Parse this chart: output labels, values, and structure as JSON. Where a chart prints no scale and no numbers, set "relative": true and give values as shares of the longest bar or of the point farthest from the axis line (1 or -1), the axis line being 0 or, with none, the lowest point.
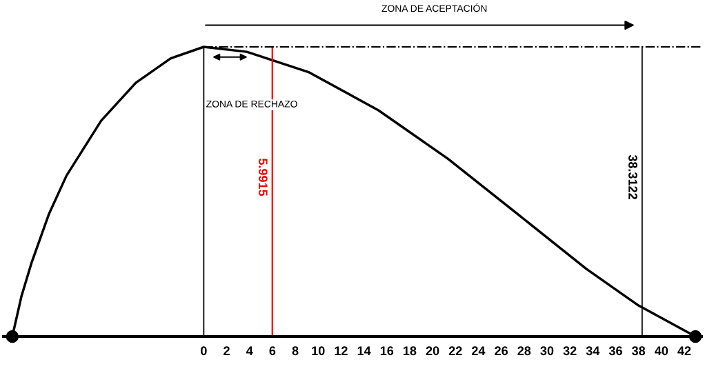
{
  "chart_data": {
    "type": "line",
    "relative": true,
    "x": [
      -16.73,
      -15.94,
      -15.03,
      -13.52,
      -12.0,
      -8.97,
      -5.94,
      -2.91,
      0,
      3.76,
      9.21,
      15.27,
      21.33,
      27.39,
      33.45,
      38.0,
      42.97
    ],
    "series": [
      {
        "color": "#000000",
        "values": [
          0,
          0.138,
          0.257,
          0.424,
          0.555,
          0.745,
          0.876,
          0.96,
          1,
          0.983,
          0.912,
          0.781,
          0.614,
          0.424,
          0.233,
          0.107,
          0
        ]
      }
    ],
    "line_style": "solid",
    "xlim": [
      -17.5,
      43.5
    ],
    "xticks": [
      0,
      2,
      4,
      6,
      8,
      10,
      12,
      14,
      16,
      18,
      20,
      22,
      24,
      26,
      28,
      30,
      32,
      34,
      36,
      38,
      40,
      42
    ],
    "ref_lines": [
      {
        "axis": "x",
        "value": 0,
        "color": "#000000"
      },
      {
        "axis": "x",
        "value": 5.9915,
        "label": "5.9915",
        "color": "#ff0000"
      },
      {
        "axis": "x",
        "value": 38.3122,
        "label": "38.3122",
        "color": "#000000"
      },
      {
        "axis": "y",
        "value": 1,
        "color": "#000000",
        "line_style": "dashdot"
      }
    ],
    "annotations": [
      "ZONA DE ACEPTACIÓN",
      "ZONA DE RECHAZO"
    ],
    "grid": false,
    "legend": false
  }
}
